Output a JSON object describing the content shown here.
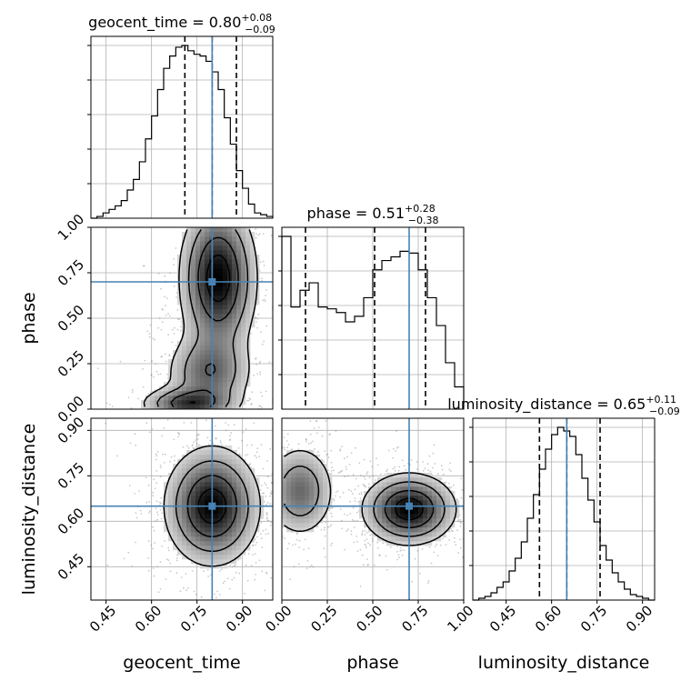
{
  "chart_data": {
    "type": "corner",
    "parameters": [
      "geocent_time",
      "phase",
      "luminosity_distance"
    ],
    "axis_labels": {
      "x": [
        "geocent_time",
        "phase",
        "luminosity_distance"
      ],
      "y": [
        "phase",
        "luminosity_distance"
      ]
    },
    "ranges": {
      "geocent_time": [
        0.4,
        1.0
      ],
      "phase": [
        0.0,
        1.0
      ],
      "luminosity_distance": [
        0.34,
        0.94
      ]
    },
    "ticks": {
      "geocent_time": [
        "0.45",
        "0.60",
        "0.75",
        "0.90"
      ],
      "phase": [
        "0.00",
        "0.25",
        "0.50",
        "0.75",
        "1.00"
      ],
      "luminosity_distance": [
        "0.45",
        "0.60",
        "0.75",
        "0.90"
      ]
    },
    "titles": [
      {
        "param": "geocent_time",
        "label": "geocent_time = 0.80",
        "plus": "+0.08",
        "minus": "−0.09"
      },
      {
        "param": "phase",
        "label": "phase = 0.51",
        "plus": "+0.28",
        "minus": "−0.38"
      },
      {
        "param": "luminosity_distance",
        "label": "luminosity_distance = 0.65",
        "plus": "+0.11",
        "minus": "−0.09"
      }
    ],
    "truths": {
      "geocent_time": 0.8,
      "phase": 0.7,
      "luminosity_distance": 0.65
    },
    "quantiles": {
      "geocent_time": [
        0.71,
        0.8,
        0.88
      ],
      "phase": [
        0.13,
        0.51,
        0.79
      ],
      "luminosity_distance": [
        0.56,
        0.65,
        0.76
      ]
    },
    "histograms": {
      "geocent_time": {
        "edges": [
          0.4,
          0.42,
          0.44,
          0.46,
          0.48,
          0.5,
          0.52,
          0.54,
          0.56,
          0.58,
          0.6,
          0.62,
          0.64,
          0.66,
          0.68,
          0.7,
          0.72,
          0.74,
          0.76,
          0.78,
          0.8,
          0.82,
          0.84,
          0.86,
          0.88,
          0.9,
          0.92,
          0.94,
          0.96,
          0.98,
          1.0
        ],
        "counts": [
          0,
          1,
          3,
          5,
          7,
          10,
          16,
          22,
          32,
          45,
          58,
          73,
          85,
          92,
          97,
          98,
          95,
          93,
          92,
          89,
          83,
          73,
          57,
          42,
          27,
          17,
          8,
          3,
          2,
          1
        ]
      },
      "phase": {
        "edges": [
          0.0,
          0.05,
          0.1,
          0.15,
          0.2,
          0.25,
          0.3,
          0.35,
          0.4,
          0.45,
          0.5,
          0.55,
          0.6,
          0.65,
          0.7,
          0.75,
          0.8,
          0.85,
          0.9,
          0.95,
          1.0
        ],
        "counts": [
          93,
          55,
          64,
          68,
          55,
          54,
          52,
          47,
          50,
          60,
          75,
          80,
          82,
          85,
          84,
          75,
          60,
          45,
          25,
          12
        ]
      },
      "luminosity_distance": {
        "edges": [
          0.34,
          0.36,
          0.38,
          0.4,
          0.42,
          0.44,
          0.46,
          0.48,
          0.5,
          0.52,
          0.54,
          0.56,
          0.58,
          0.6,
          0.62,
          0.64,
          0.66,
          0.68,
          0.7,
          0.72,
          0.74,
          0.76,
          0.78,
          0.8,
          0.82,
          0.84,
          0.86,
          0.88,
          0.9,
          0.92,
          0.94
        ],
        "counts": [
          0,
          1,
          2,
          4,
          7,
          10,
          16,
          23,
          32,
          45,
          58,
          72,
          83,
          91,
          95,
          93,
          90,
          80,
          67,
          55,
          43,
          30,
          22,
          15,
          10,
          6,
          3,
          2,
          1,
          0
        ]
      }
    },
    "pairs": [
      {
        "x": "geocent_time",
        "y": "phase",
        "blobs": [
          {
            "cx": 0.82,
            "cy": 0.72,
            "sx": 0.065,
            "sy": 0.22,
            "w": 1.0
          },
          {
            "cx": 0.79,
            "cy": 0.2,
            "sx": 0.075,
            "sy": 0.12,
            "w": 0.55
          },
          {
            "cx": 0.72,
            "cy": 0.03,
            "sx": 0.08,
            "sy": 0.05,
            "w": 0.7
          }
        ]
      },
      {
        "x": "geocent_time",
        "y": "luminosity_distance",
        "blobs": [
          {
            "cx": 0.8,
            "cy": 0.65,
            "sx": 0.08,
            "sy": 0.1,
            "w": 1.0
          }
        ]
      },
      {
        "x": "phase",
        "y": "luminosity_distance",
        "blobs": [
          {
            "cx": 0.7,
            "cy": 0.64,
            "sx": 0.13,
            "sy": 0.06,
            "w": 1.0
          },
          {
            "cx": 0.1,
            "cy": 0.7,
            "sx": 0.1,
            "sy": 0.08,
            "w": 0.55
          }
        ]
      }
    ]
  }
}
